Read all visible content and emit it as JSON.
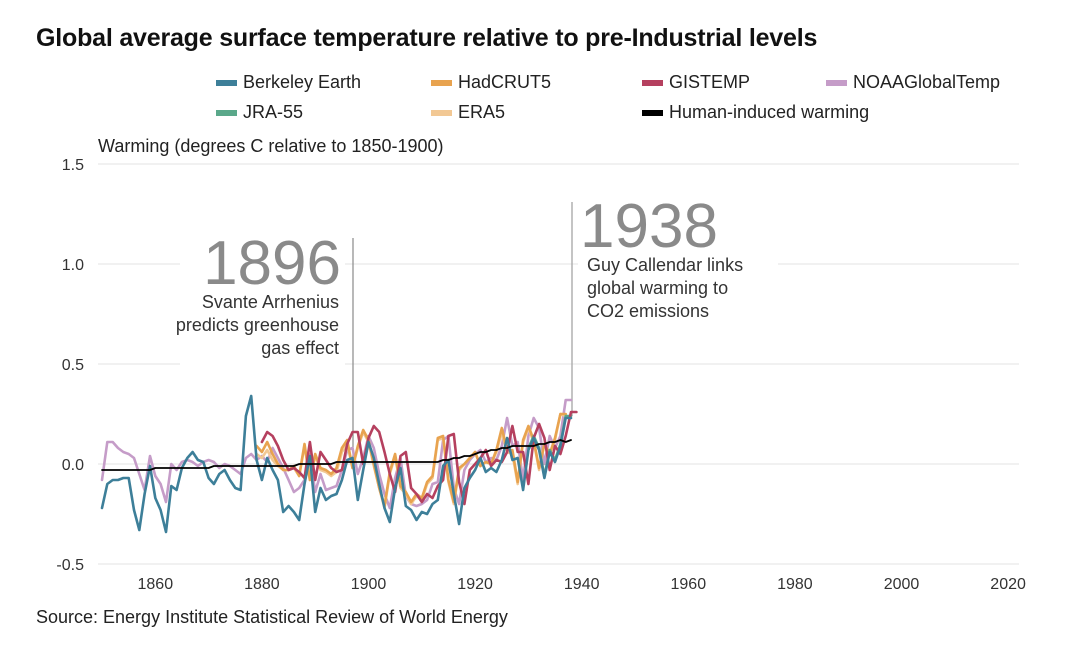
{
  "chart_data": {
    "type": "line",
    "title": "Global average surface temperature relative to pre-Industrial levels",
    "ylabel": "Warming (degrees C relative to 1850-1900)",
    "xlabel": "",
    "source": "Source: Energy Institute Statistical Review of World Energy",
    "xlim": [
      1850,
      2023
    ],
    "ylim": [
      -0.5,
      1.5
    ],
    "x_ticks": [
      1860,
      1880,
      1900,
      1920,
      1940,
      1960,
      1980,
      2000,
      2020
    ],
    "y_ticks": [
      -0.5,
      0.0,
      0.5,
      1.0,
      1.5
    ],
    "y_tick_labels": [
      "-0.5",
      "0.0",
      "0.5",
      "1.0",
      "1.5"
    ],
    "grid": "horizontal",
    "legend_placement": "top",
    "legend": [
      {
        "name": "Berkeley Earth",
        "color": "#3d7f99"
      },
      {
        "name": "HadCRUT5",
        "color": "#e8a34f"
      },
      {
        "name": "GISTEMP",
        "color": "#b5405f"
      },
      {
        "name": "NOAAGlobalTemp",
        "color": "#c59cc8"
      },
      {
        "name": "JRA-55",
        "color": "#5aa88a"
      },
      {
        "name": "ERA5",
        "color": "#f2c894"
      },
      {
        "name": "Human-induced warming",
        "color": "#000000"
      }
    ],
    "annotations": [
      {
        "year": 1896,
        "label": "1896",
        "text": [
          "Svante Arrhenius",
          "predicts greenhouse",
          "gas effect"
        ]
      },
      {
        "year": 1938,
        "label": "1938",
        "text": [
          "Guy Callendar links",
          "global warming to",
          "CO2 emissions"
        ]
      }
    ],
    "series": [
      {
        "name": "NOAAGlobalTemp",
        "color": "#c59cc8",
        "start": 1850,
        "values": [
          -0.08,
          0.11,
          0.11,
          0.08,
          0.06,
          0.05,
          0.03,
          -0.05,
          -0.13,
          0.04,
          -0.06,
          -0.1,
          -0.19,
          0.0,
          -0.03,
          0.01,
          0.02,
          0.01,
          -0.01,
          0.01,
          0.02,
          0.01,
          -0.02,
          0.0,
          -0.01,
          -0.03,
          -0.05,
          0.03,
          0.05,
          0.02,
          0.04,
          0.01,
          0.08,
          0.03,
          -0.02,
          -0.08,
          -0.14,
          -0.12,
          -0.08,
          0.05,
          -0.14,
          -0.05,
          -0.13,
          -0.12,
          -0.11,
          -0.03,
          0.07,
          0.08,
          -0.05,
          0.03,
          0.14,
          0.08,
          -0.05,
          -0.15,
          -0.22,
          -0.07,
          0.03,
          -0.16,
          -0.2,
          -0.21,
          -0.2,
          -0.18,
          -0.1,
          -0.09,
          0.12,
          0.14,
          -0.12,
          -0.2,
          -0.03,
          0.02,
          0.05,
          0.07,
          0.01,
          0.03,
          0.02,
          0.09,
          0.23,
          0.09,
          0.11,
          -0.08,
          0.14,
          0.23,
          0.18,
          0.0,
          0.14,
          0.08,
          0.14,
          0.32,
          0.32
        ]
      },
      {
        "name": "ERA5",
        "color": "#f2c894",
        "start": 1879,
        "values": [
          0.05,
          0.03,
          0.07,
          0.02,
          -0.01,
          -0.03,
          -0.03,
          -0.02,
          -0.06,
          0.09,
          -0.08,
          0.04,
          -0.03,
          -0.04,
          -0.06,
          -0.04,
          0.06,
          0.1,
          -0.02,
          0.08,
          0.16,
          0.11,
          -0.01,
          -0.12,
          -0.22,
          -0.05,
          0.04,
          -0.12,
          -0.15,
          -0.2,
          -0.16,
          -0.18,
          -0.1,
          -0.07,
          0.12,
          0.13,
          -0.09,
          -0.2,
          -0.03,
          0.0,
          0.03,
          0.06,
          -0.01,
          0.01,
          0.0,
          0.06,
          0.16,
          0.06,
          0.05,
          -0.1,
          0.11,
          0.18,
          0.11,
          -0.03,
          0.1,
          0.05,
          0.12,
          0.25,
          0.24
        ]
      },
      {
        "name": "HadCRUT5",
        "color": "#e8a34f",
        "start": 1879,
        "values": [
          0.09,
          0.06,
          0.11,
          0.05,
          0.0,
          -0.03,
          -0.03,
          -0.01,
          -0.06,
          0.1,
          -0.08,
          0.05,
          -0.02,
          -0.03,
          -0.05,
          -0.02,
          0.08,
          0.12,
          -0.02,
          0.09,
          0.17,
          0.12,
          0.0,
          -0.12,
          -0.21,
          -0.04,
          0.05,
          -0.11,
          -0.14,
          -0.19,
          -0.15,
          -0.17,
          -0.09,
          -0.06,
          0.13,
          0.14,
          -0.08,
          -0.19,
          -0.02,
          0.0,
          0.03,
          0.06,
          -0.01,
          0.01,
          0.0,
          0.07,
          0.18,
          0.07,
          0.07,
          -0.09,
          0.12,
          0.19,
          0.12,
          -0.02,
          0.1,
          0.05,
          0.13,
          0.25,
          0.25
        ]
      },
      {
        "name": "JRA-55",
        "color": "#5aa88a",
        "start": 1930,
        "values": [
          0.08,
          0.14,
          0.08,
          -0.06,
          0.07,
          0.02,
          0.1,
          0.24,
          0.24
        ]
      },
      {
        "name": "GISTEMP",
        "color": "#b5405f",
        "start": 1880,
        "values": [
          0.11,
          0.16,
          0.14,
          0.09,
          0.02,
          -0.03,
          -0.02,
          -0.04,
          -0.07,
          0.11,
          -0.08,
          0.06,
          0.02,
          -0.02,
          -0.04,
          -0.03,
          0.1,
          0.16,
          0.16,
          0.0,
          0.13,
          0.19,
          0.16,
          0.06,
          -0.05,
          -0.14,
          0.04,
          0.06,
          -0.12,
          -0.15,
          -0.19,
          -0.15,
          -0.17,
          -0.11,
          -0.08,
          0.14,
          0.15,
          -0.09,
          -0.2,
          -0.03,
          0.0,
          0.03,
          0.07,
          -0.01,
          0.02,
          0.01,
          0.06,
          0.19,
          0.06,
          0.06,
          -0.1,
          0.13,
          0.2,
          0.13,
          -0.03,
          0.09,
          0.05,
          0.14,
          0.26,
          0.26
        ]
      },
      {
        "name": "Berkeley Earth",
        "color": "#3d7f99",
        "start": 1850,
        "values": [
          -0.22,
          -0.1,
          -0.08,
          -0.08,
          -0.07,
          -0.07,
          -0.23,
          -0.33,
          -0.15,
          -0.01,
          -0.17,
          -0.23,
          -0.34,
          -0.11,
          -0.13,
          -0.02,
          0.03,
          0.06,
          0.02,
          0.01,
          -0.07,
          -0.1,
          -0.05,
          -0.03,
          -0.08,
          -0.12,
          -0.13,
          0.24,
          0.34,
          0.02,
          -0.08,
          0.03,
          -0.03,
          -0.08,
          -0.24,
          -0.21,
          -0.24,
          -0.28,
          -0.1,
          0.04,
          -0.24,
          -0.12,
          -0.18,
          -0.16,
          -0.15,
          -0.08,
          0.02,
          0.03,
          -0.18,
          -0.03,
          0.11,
          0.03,
          -0.1,
          -0.22,
          -0.29,
          -0.12,
          -0.02,
          -0.21,
          -0.23,
          -0.28,
          -0.24,
          -0.25,
          -0.2,
          -0.18,
          -0.01,
          0.02,
          -0.15,
          -0.3,
          -0.12,
          -0.07,
          -0.03,
          0.03,
          -0.04,
          -0.02,
          -0.04,
          0.02,
          0.13,
          0.02,
          0.03,
          -0.13,
          0.07,
          0.13,
          0.07,
          -0.07,
          0.06,
          0.01,
          0.09,
          0.23,
          0.23
        ]
      },
      {
        "name": "Human-induced warming",
        "color": "#000000",
        "start": 1850,
        "values": [
          -0.03,
          -0.03,
          -0.03,
          -0.03,
          -0.03,
          -0.03,
          -0.03,
          -0.03,
          -0.03,
          -0.03,
          -0.02,
          -0.02,
          -0.02,
          -0.02,
          -0.02,
          -0.02,
          -0.02,
          -0.02,
          -0.02,
          -0.02,
          -0.02,
          -0.01,
          -0.01,
          -0.01,
          -0.01,
          -0.01,
          -0.01,
          -0.01,
          -0.01,
          -0.01,
          -0.01,
          -0.01,
          -0.01,
          -0.01,
          -0.01,
          -0.01,
          -0.01,
          0.0,
          0.0,
          0.0,
          0.0,
          0.0,
          0.0,
          0.0,
          0.01,
          0.01,
          0.01,
          0.01,
          0.01,
          0.01,
          0.01,
          0.01,
          0.01,
          0.01,
          0.01,
          0.01,
          0.01,
          0.01,
          0.01,
          0.01,
          0.01,
          0.01,
          0.01,
          0.01,
          0.02,
          0.02,
          0.03,
          0.03,
          0.04,
          0.04,
          0.05,
          0.06,
          0.06,
          0.07,
          0.07,
          0.08,
          0.08,
          0.09,
          0.09,
          0.09,
          0.09,
          0.09,
          0.1,
          0.1,
          0.11,
          0.11,
          0.12,
          0.11,
          0.12
        ]
      }
    ]
  }
}
